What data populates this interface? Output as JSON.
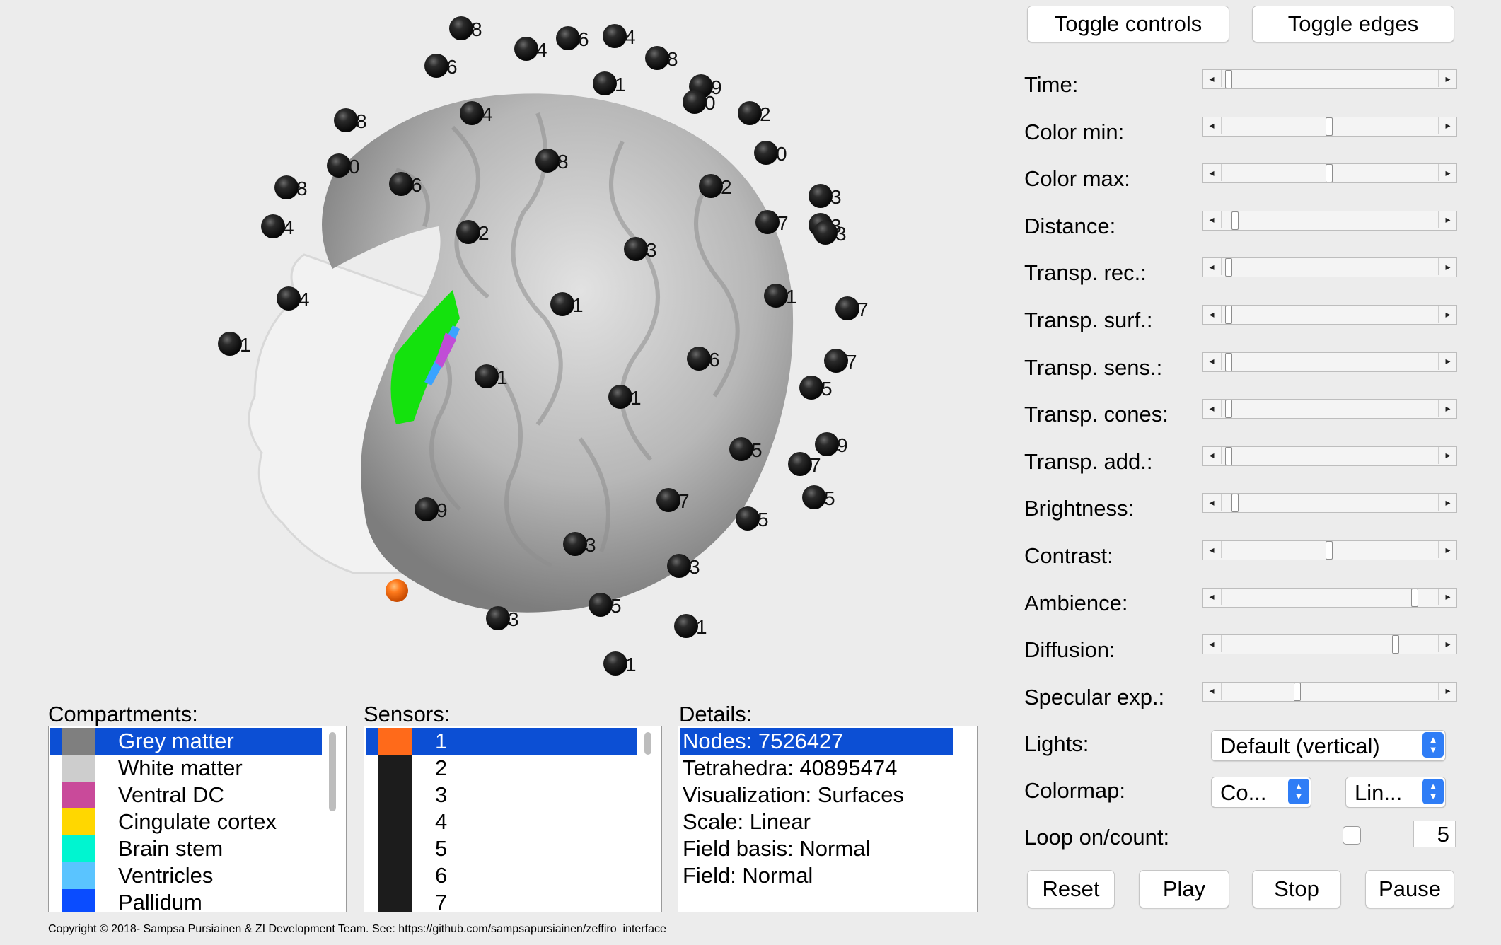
{
  "top_buttons": {
    "toggle_controls": "Toggle controls",
    "toggle_edges": "Toggle edges"
  },
  "sliders": [
    {
      "label": "Time:",
      "value": 0.03
    },
    {
      "label": "Color min:",
      "value": 0.5
    },
    {
      "label": "Color max:",
      "value": 0.5
    },
    {
      "label": "Distance:",
      "value": 0.06
    },
    {
      "label": "Transp. rec.:",
      "value": 0.03
    },
    {
      "label": "Transp. surf.:",
      "value": 0.03
    },
    {
      "label": "Transp. sens.:",
      "value": 0.03
    },
    {
      "label": "Transp. cones:",
      "value": 0.03
    },
    {
      "label": "Transp. add.:",
      "value": 0.03
    },
    {
      "label": "Brightness:",
      "value": 0.06
    },
    {
      "label": "Contrast:",
      "value": 0.5
    },
    {
      "label": "Ambience:",
      "value": 0.9
    },
    {
      "label": "Diffusion:",
      "value": 0.81
    },
    {
      "label": "Specular exp.:",
      "value": 0.35
    }
  ],
  "lights": {
    "label": "Lights:",
    "value": "Default (vertical)"
  },
  "colormap": {
    "label": "Colormap:",
    "value1": "Co...",
    "value2": "Lin..."
  },
  "loop": {
    "label": "Loop on/count:",
    "count": "5",
    "checked": false
  },
  "buttons": {
    "reset": "Reset",
    "play": "Play",
    "stop": "Stop",
    "pause": "Pause"
  },
  "compartments": {
    "title": "Compartments:",
    "items": [
      {
        "label": "Grey matter",
        "color": "#7f7f7f",
        "selected": true
      },
      {
        "label": "White matter",
        "color": "#cdcdcd",
        "selected": false
      },
      {
        "label": "Ventral DC",
        "color": "#c94a9a",
        "selected": false
      },
      {
        "label": "Cingulate cortex",
        "color": "#ffd700",
        "selected": false
      },
      {
        "label": "Brain stem",
        "color": "#00f5d0",
        "selected": false
      },
      {
        "label": "Ventricles",
        "color": "#5ac4ff",
        "selected": false
      },
      {
        "label": "Pallidum",
        "color": "#0a4cff",
        "selected": false
      }
    ]
  },
  "sensors": {
    "title": "Sensors:",
    "items": [
      {
        "label": "1",
        "color": "#ff6a1a",
        "selected": true
      },
      {
        "label": "2",
        "color": "#1c1c1c",
        "selected": false
      },
      {
        "label": "3",
        "color": "#1c1c1c",
        "selected": false
      },
      {
        "label": "4",
        "color": "#1c1c1c",
        "selected": false
      },
      {
        "label": "5",
        "color": "#1c1c1c",
        "selected": false
      },
      {
        "label": "6",
        "color": "#1c1c1c",
        "selected": false
      },
      {
        "label": "7",
        "color": "#1c1c1c",
        "selected": false
      }
    ]
  },
  "details": {
    "title": "Details:",
    "items": [
      {
        "label": "Nodes: 7526427",
        "selected": true
      },
      {
        "label": "Tetrahedra: 40895474",
        "selected": false
      },
      {
        "label": "Visualization: Surfaces",
        "selected": false
      },
      {
        "label": "Scale: Linear",
        "selected": false
      },
      {
        "label": "Field basis: Normal",
        "selected": false
      },
      {
        "label": "Field: Normal",
        "selected": false
      }
    ]
  },
  "copyright": "Copyright © 2018- Sampsa Pursiainen & ZI Development Team. See: https://github.com/sampsapursiainen/zeffiro_interface",
  "viewer": {
    "electrode_color": "#1e1e1e",
    "selected_electrode_color": "#ff7a1c",
    "brain_color": "#b9b9b9",
    "electrode_labels": [
      "1",
      "8",
      "4",
      "6",
      "4",
      "8",
      "6",
      "1",
      "9",
      "0",
      "2",
      "8",
      "4",
      "8",
      "0",
      "0",
      "8",
      "6",
      "2",
      "3",
      "3",
      "4",
      "2",
      "7",
      "3",
      "1",
      "1",
      "7",
      "1",
      "6",
      "7",
      "5",
      "1",
      "9",
      "5",
      "7",
      "5",
      "9",
      "7",
      "5",
      "3",
      "3",
      "5",
      "3",
      "1",
      "1",
      "4",
      "3"
    ]
  }
}
